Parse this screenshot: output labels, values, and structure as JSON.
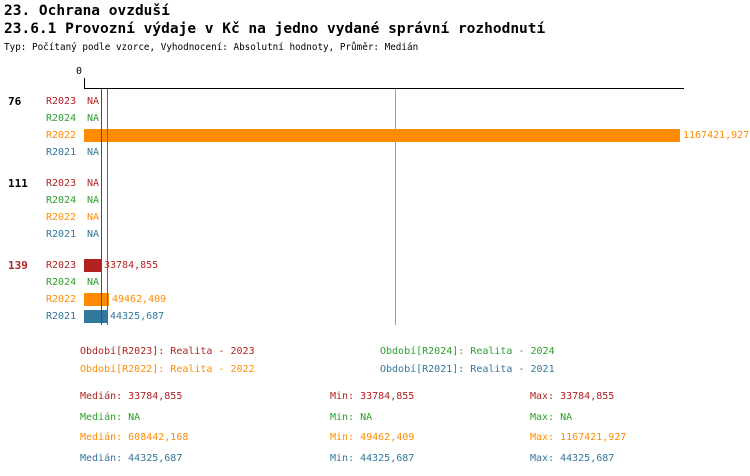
{
  "header": {
    "title_line1": "23. Ochrana ovzduší",
    "title_line2": "23.6.1 Provozní výdaje v Kč na jedno vydané správní rozhodnutí",
    "subtitle": "Typ: Počítaný podle vzorce, Vyhodnocení: Absolutní hodnoty, Průměr: Medián"
  },
  "chart_data": {
    "type": "bar",
    "orientation": "horizontal",
    "title": "23.6.1 Provozní výdaje v Kč na jedno vydané správní rozhodnutí",
    "axis": {
      "zero_label": "0",
      "max_value": 1167421.927,
      "xlim": [
        0,
        1167421.927
      ]
    },
    "series_colors": {
      "R2023": "#b22222",
      "R2024": "#2ca02c",
      "R2022": "#ff8c00",
      "R2021": "#31789c"
    },
    "groups": [
      {
        "id": "76",
        "label_color": "#000000",
        "rows": [
          {
            "series": "R2023",
            "value": null,
            "label": "NA"
          },
          {
            "series": "R2024",
            "value": null,
            "label": "NA"
          },
          {
            "series": "R2022",
            "value": 1167421.927,
            "label": "1167421,927"
          },
          {
            "series": "R2021",
            "value": null,
            "label": "NA"
          }
        ]
      },
      {
        "id": "111",
        "label_color": "#000000",
        "rows": [
          {
            "series": "R2023",
            "value": null,
            "label": "NA"
          },
          {
            "series": "R2024",
            "value": null,
            "label": "NA"
          },
          {
            "series": "R2022",
            "value": null,
            "label": "NA"
          },
          {
            "series": "R2021",
            "value": null,
            "label": "NA"
          }
        ]
      },
      {
        "id": "139",
        "label_color": "#b22222",
        "rows": [
          {
            "series": "R2023",
            "value": 33784.855,
            "label": "33784,855"
          },
          {
            "series": "R2024",
            "value": null,
            "label": "NA"
          },
          {
            "series": "R2022",
            "value": 49462.409,
            "label": "49462,409"
          },
          {
            "series": "R2021",
            "value": 44325.687,
            "label": "44325,687"
          }
        ]
      }
    ],
    "medians": [
      {
        "series": "R2023",
        "value": 33784.855
      },
      {
        "series": "R2021",
        "value": 44325.687
      },
      {
        "series": "R2022",
        "value": 608442.168
      }
    ],
    "legend": [
      {
        "series": "R2023",
        "text": "Období[R2023]: Realita - 2023"
      },
      {
        "series": "R2024",
        "text": "Období[R2024]: Realita - 2024"
      },
      {
        "series": "R2022",
        "text": "Období[R2022]: Realita - 2022"
      },
      {
        "series": "R2021",
        "text": "Období[R2021]: Realita - 2021"
      }
    ],
    "stats": [
      {
        "series": "R2023",
        "median_label": "Medián: 33784,855",
        "min_label": "Min: 33784,855",
        "max_label": "Max: 33784,855"
      },
      {
        "series": "R2024",
        "median_label": "Medián: NA",
        "min_label": "Min: NA",
        "max_label": "Max: NA"
      },
      {
        "series": "R2022",
        "median_label": "Medián: 608442,168",
        "min_label": "Min: 49462,409",
        "max_label": "Max: 1167421,927"
      },
      {
        "series": "R2021",
        "median_label": "Medián: 44325,687",
        "min_label": "Min: 44325,687",
        "max_label": "Max: 44325,687"
      }
    ]
  }
}
